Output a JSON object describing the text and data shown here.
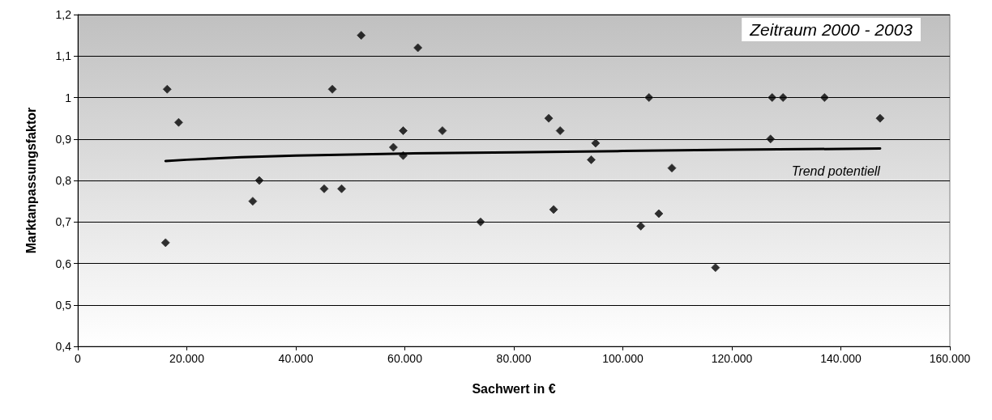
{
  "chart_data": {
    "type": "scatter",
    "title": "Zeitraum 2000 - 2003",
    "xlabel": "Sachwert in €",
    "ylabel": "Marktanpassungsfaktor",
    "xlim": [
      0,
      160000
    ],
    "xticks": [
      0,
      {
        "value": 20000,
        "label": "20.000"
      },
      {
        "value": 40000,
        "label": "40.000"
      },
      {
        "value": 60000,
        "label": "60.000"
      },
      {
        "value": 80000,
        "label": "80.000"
      },
      {
        "value": 100000,
        "label": "100.000"
      },
      {
        "value": 120000,
        "label": "120.000"
      },
      {
        "value": 140000,
        "label": "140.000"
      },
      {
        "value": 160000,
        "label": "160.000"
      }
    ],
    "ylim": [
      0.4,
      1.2
    ],
    "yticks": [
      {
        "value": 0.4,
        "label": "0,4"
      },
      {
        "value": 0.5,
        "label": "0,5"
      },
      {
        "value": 0.6,
        "label": "0,6"
      },
      {
        "value": 0.7,
        "label": "0,7"
      },
      {
        "value": 0.8,
        "label": "0,8"
      },
      {
        "value": 0.9,
        "label": "0,9"
      },
      1,
      {
        "value": 1.1,
        "label": "1,1"
      },
      {
        "value": 1.2,
        "label": "1,2"
      }
    ],
    "grid": "y",
    "legend": false,
    "series": [
      {
        "marker": "diamond",
        "color": "#000000",
        "x": [
          16100,
          16400,
          18500,
          32100,
          33300,
          45200,
          48400,
          46700,
          52000,
          62400,
          57900,
          59700,
          59700,
          66900,
          73900,
          86400,
          88500,
          87300,
          95000,
          94200,
          103300,
          106600,
          104800,
          109000,
          117000,
          127100,
          127400,
          129400,
          137000,
          147200
        ],
        "values": [
          0.65,
          1.02,
          0.94,
          0.75,
          0.8,
          0.78,
          0.78,
          1.02,
          1.15,
          1.12,
          0.88,
          0.92,
          0.86,
          0.92,
          0.7,
          0.95,
          0.92,
          0.73,
          0.89,
          0.85,
          0.69,
          0.72,
          1.0,
          0.83,
          0.59,
          0.9,
          1.0,
          1.0,
          1.0,
          0.95
        ]
      },
      {
        "type": "line",
        "name": "Trend potentiell",
        "marker": "none",
        "line_style": "solid",
        "color": "#000000",
        "x": [
          16100,
          20000,
          30000,
          40000,
          60000,
          80000,
          100000,
          120000,
          147200
        ],
        "values": [
          0.847,
          0.85,
          0.856,
          0.86,
          0.865,
          0.868,
          0.871,
          0.874,
          0.877
        ]
      }
    ]
  }
}
